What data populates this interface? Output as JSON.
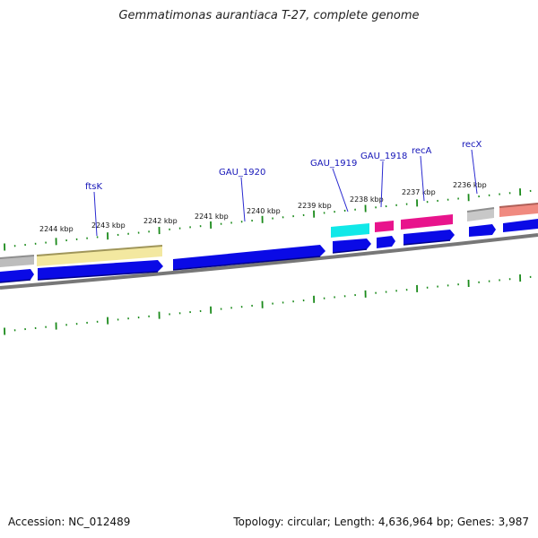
{
  "title": "Gemmatimonas aurantiaca T-27, complete genome",
  "footer": {
    "accession": "Accession: NC_012489",
    "summary": "Topology: circular; Length: 4,636,964 bp; Genes: 3,987"
  },
  "ruler_labels": [
    "2244 kbp",
    "2243 kbp",
    "2242 kbp",
    "2241 kbp",
    "2240 kbp",
    "2239 kbp",
    "2238 kbp",
    "2237 kbp",
    "2236 kbp"
  ],
  "gene_labels": [
    "ftsK",
    "GAU_1920",
    "GAU_1919",
    "GAU_1918",
    "recA",
    "recX"
  ],
  "colors": {
    "cds": "#0a0ae6",
    "ftsK": "#f3e8a0",
    "gau1919": "#11e8e8",
    "gau1918": "#e8148c",
    "recA": "#e8148c",
    "recX": "#c8c8c8",
    "next_gene": "#f08a80",
    "backbone": "#777777",
    "ticks": "#1a8a1a",
    "label_line": "#2a2ad0"
  }
}
